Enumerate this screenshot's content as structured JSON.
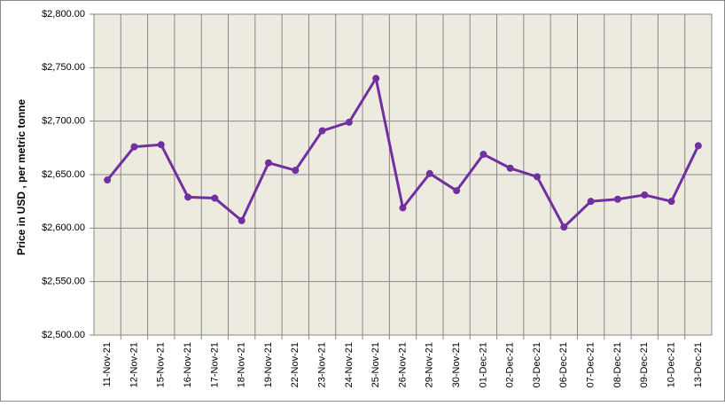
{
  "chart_data": {
    "type": "line",
    "y_label": "Price in USD , per metric tonne",
    "categories": [
      "11-Nov-21",
      "12-Nov-21",
      "15-Nov-21",
      "16-Nov-21",
      "17-Nov-21",
      "18-Nov-21",
      "19-Nov-21",
      "22-Nov-21",
      "23-Nov-21",
      "24-Nov-21",
      "25-Nov-21",
      "26-Nov-21",
      "29-Nov-21",
      "30-Nov-21",
      "01-Dec-21",
      "02-Dec-21",
      "03-Dec-21",
      "06-Dec-21",
      "07-Dec-21",
      "08-Dec-21",
      "09-Dec-21",
      "10-Dec-21",
      "13-Dec-21"
    ],
    "series": [
      {
        "color": "#7030a0",
        "values": [
          2645,
          2676,
          2678,
          2629,
          2628,
          2607,
          2661,
          2654,
          2691,
          2699,
          2740,
          2619,
          2651,
          2635,
          2669,
          2656,
          2648,
          2601,
          2625,
          2627,
          2631,
          2625,
          2677
        ]
      }
    ],
    "ylim": [
      2500,
      2800
    ],
    "yticks": [
      {
        "value": 2500,
        "label": "$2,500.00"
      },
      {
        "value": 2550,
        "label": "$2,550.00"
      },
      {
        "value": 2600,
        "label": "$2,600.00"
      },
      {
        "value": 2650,
        "label": "$2,650.00"
      },
      {
        "value": 2700,
        "label": "$2,700.00"
      },
      {
        "value": 2750,
        "label": "$2,750.00"
      },
      {
        "value": 2800,
        "label": "$2,800.00"
      }
    ],
    "grid": true,
    "plot_background": "#edeae0"
  }
}
